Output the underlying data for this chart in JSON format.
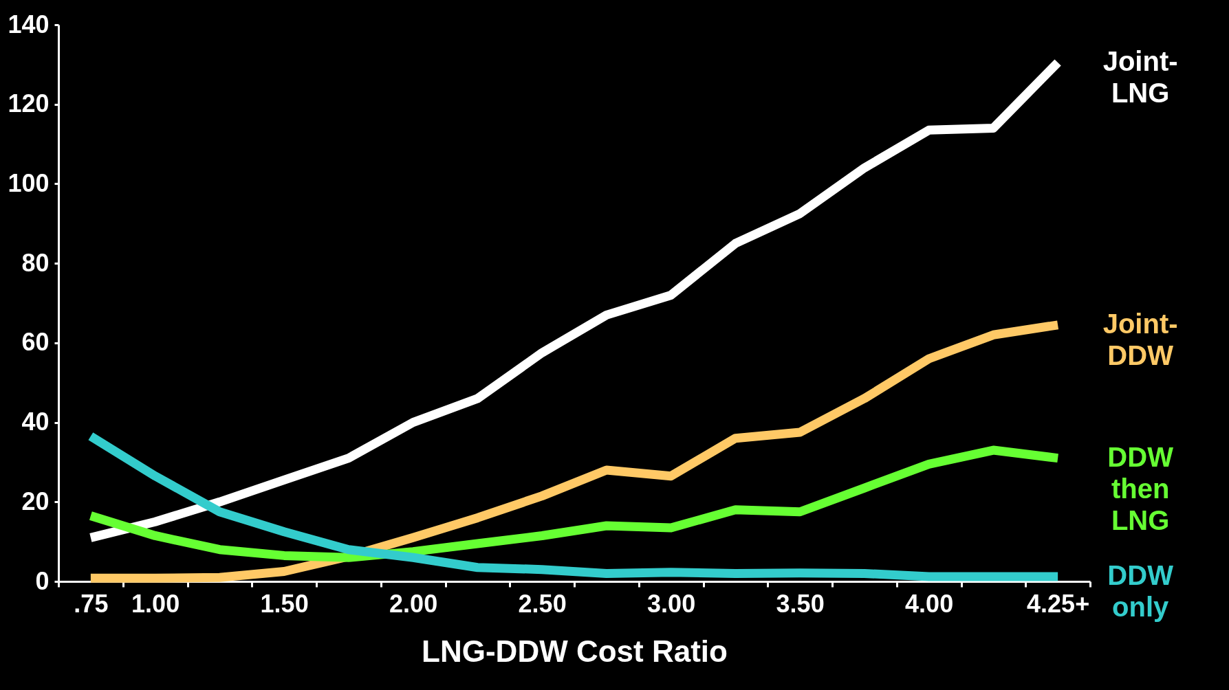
{
  "chart_data": {
    "type": "line",
    "xlabel": "LNG-DDW Cost Ratio",
    "categories": [
      ".75",
      "1.00",
      null,
      "1.50",
      null,
      "2.00",
      null,
      "2.50",
      null,
      "3.00",
      null,
      "3.50",
      null,
      "4.00",
      null,
      "4.25+"
    ],
    "ylim": [
      0,
      140
    ],
    "yticks": [
      0,
      20,
      40,
      60,
      80,
      100,
      120,
      140
    ],
    "grid": false,
    "marker": "none",
    "line_style": "solid",
    "series": [
      {
        "name": "Joint-LNG",
        "color": "#ffffff",
        "values": [
          11,
          15,
          20,
          25.5,
          31,
          40,
          46,
          57.5,
          67,
          72,
          85,
          92.5,
          104,
          113.5,
          114,
          130.5
        ]
      },
      {
        "name": "Joint-DDW",
        "color": "#ffc966",
        "values": [
          0.8,
          0.8,
          1,
          2.5,
          6.3,
          11,
          16,
          21.5,
          28,
          26.5,
          36,
          37.5,
          46,
          56,
          62,
          64.5
        ]
      },
      {
        "name": "DDW then LNG",
        "color": "#66ff33",
        "values": [
          16.5,
          11.5,
          8,
          6.5,
          6,
          7.5,
          9.5,
          11.5,
          14,
          13.5,
          18,
          17.5,
          23.5,
          29.5,
          33,
          31
        ]
      },
      {
        "name": "DDW only",
        "color": "#33cccc",
        "values": [
          36.5,
          26.5,
          17.5,
          12.5,
          8,
          6,
          3.5,
          3,
          2,
          2.3,
          2,
          2.1,
          2,
          1.2,
          1.2,
          1.2
        ]
      }
    ]
  }
}
